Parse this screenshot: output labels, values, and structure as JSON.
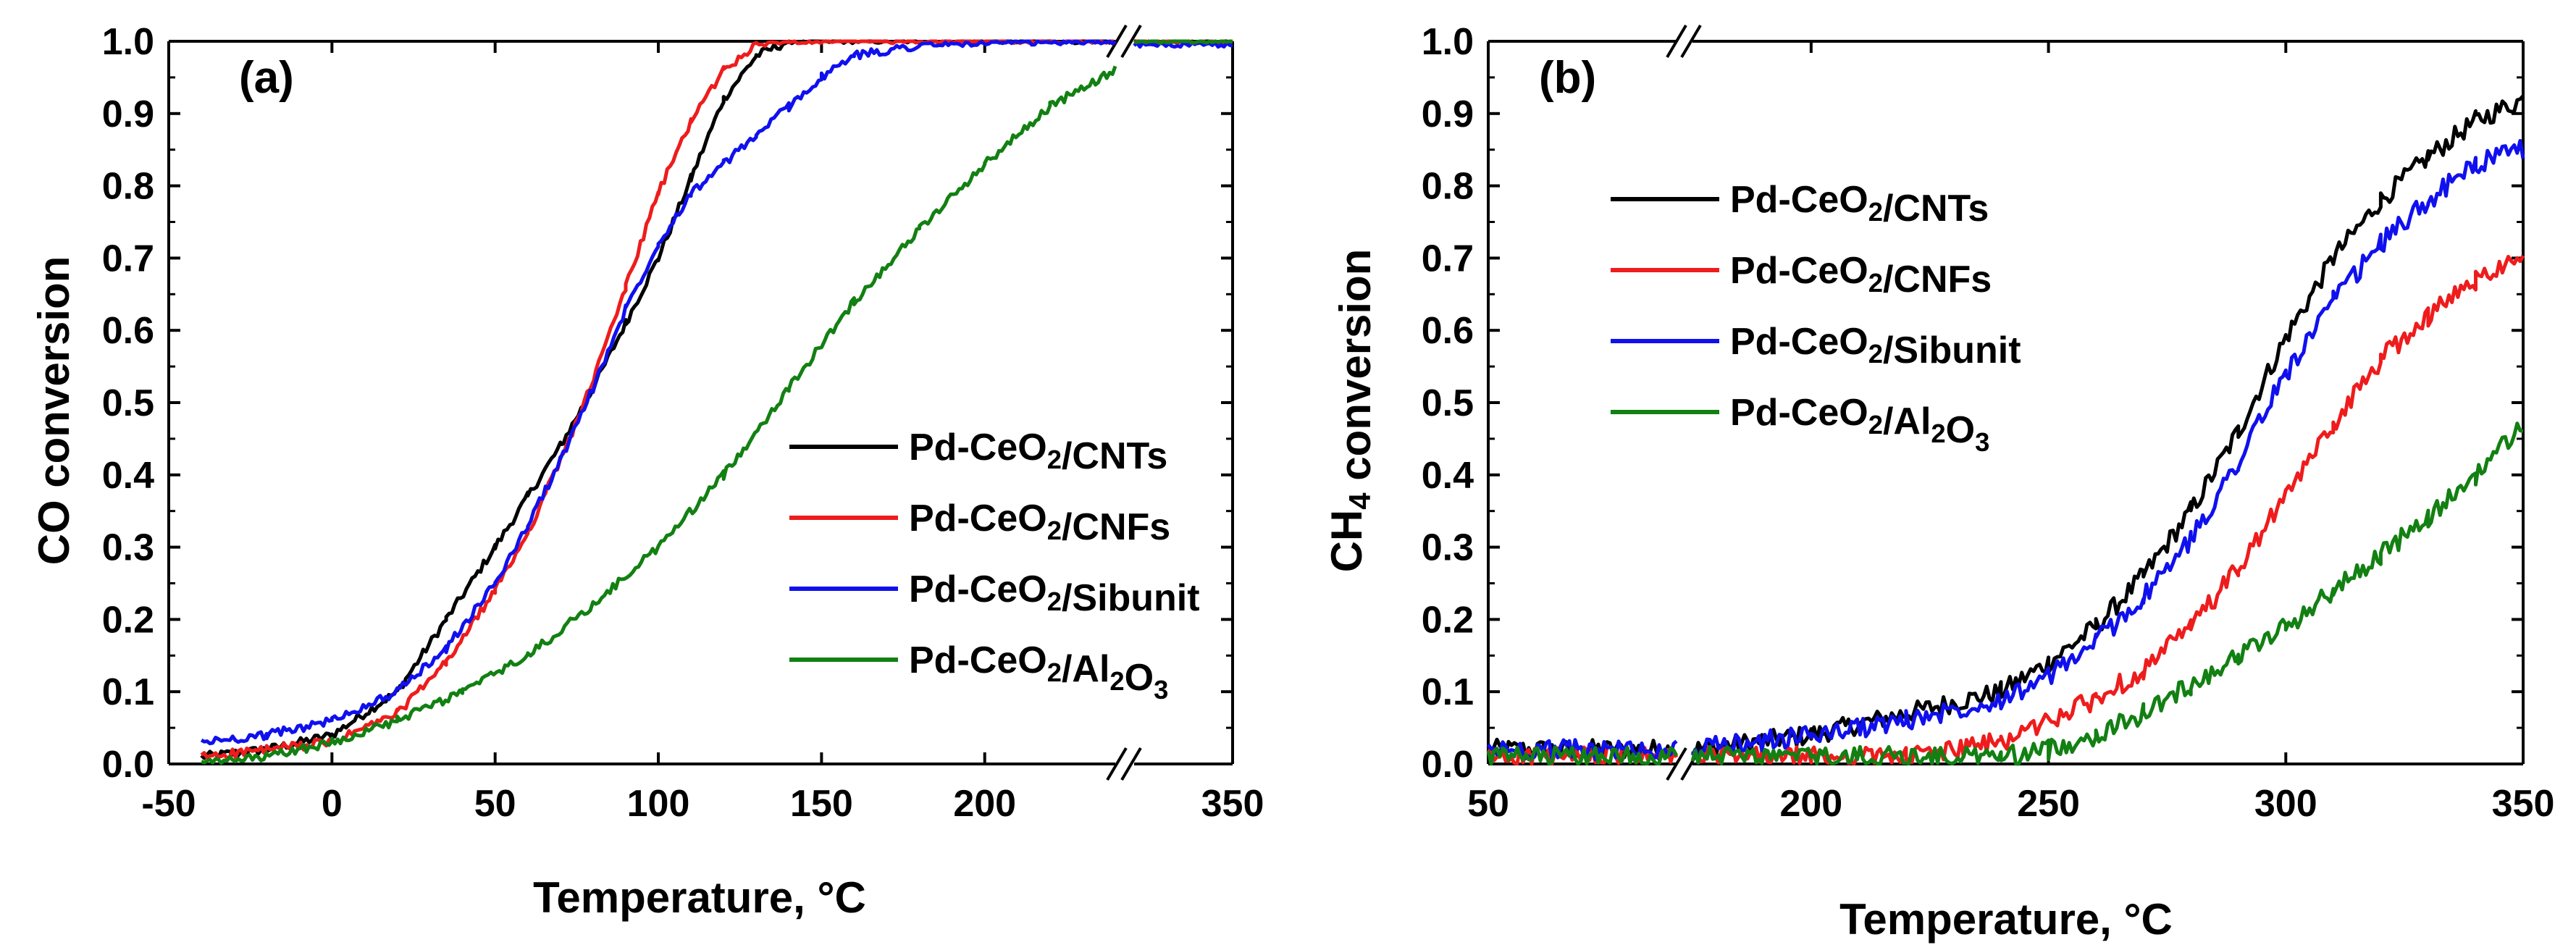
{
  "chart_data": [
    {
      "panel": "(a)",
      "type": "line",
      "xlabel": "Temperature, °C",
      "ylabel": "CO conversion",
      "ylim": [
        0,
        1.0
      ],
      "yticks": [
        "0.0",
        "0.1",
        "0.2",
        "0.3",
        "0.4",
        "0.5",
        "0.6",
        "0.7",
        "0.8",
        "0.9",
        "1.0"
      ],
      "x_segments": [
        {
          "xlim": [
            -50,
            240
          ],
          "ticks": [
            -50,
            0,
            50,
            100,
            150,
            200
          ]
        },
        {
          "xlim": [
            330,
            350
          ],
          "ticks": [
            350
          ]
        }
      ],
      "legend_position": "center-right",
      "series": [
        {
          "name": "Pd-CeO2/CNTs",
          "color": "#000000",
          "points": [
            [
              -40,
              0.01
            ],
            [
              -20,
              0.02
            ],
            [
              0,
              0.04
            ],
            [
              20,
              0.1
            ],
            [
              35,
              0.2
            ],
            [
              50,
              0.3
            ],
            [
              60,
              0.37
            ],
            [
              70,
              0.44
            ],
            [
              80,
              0.52
            ],
            [
              90,
              0.61
            ],
            [
              100,
              0.7
            ],
            [
              110,
              0.81
            ],
            [
              120,
              0.92
            ],
            [
              130,
              0.98
            ],
            [
              140,
              1.0
            ],
            [
              240,
              1.0
            ],
            [
              330,
              1.0
            ],
            [
              350,
              1.0
            ]
          ]
        },
        {
          "name": "Pd-CeO2/CNFs",
          "color": "#ee1c1c",
          "points": [
            [
              -40,
              0.01
            ],
            [
              -20,
              0.02
            ],
            [
              0,
              0.03
            ],
            [
              20,
              0.07
            ],
            [
              35,
              0.14
            ],
            [
              50,
              0.24
            ],
            [
              60,
              0.32
            ],
            [
              70,
              0.42
            ],
            [
              80,
              0.53
            ],
            [
              90,
              0.66
            ],
            [
              100,
              0.79
            ],
            [
              110,
              0.89
            ],
            [
              120,
              0.96
            ],
            [
              130,
              0.995
            ],
            [
              140,
              1.0
            ],
            [
              240,
              1.0
            ],
            [
              330,
              1.0
            ],
            [
              350,
              1.0
            ]
          ]
        },
        {
          "name": "Pd-CeO2/Sibunit",
          "color": "#1010ee",
          "points": [
            [
              -40,
              0.03
            ],
            [
              -20,
              0.04
            ],
            [
              0,
              0.06
            ],
            [
              20,
              0.1
            ],
            [
              35,
              0.16
            ],
            [
              50,
              0.25
            ],
            [
              60,
              0.33
            ],
            [
              70,
              0.42
            ],
            [
              80,
              0.52
            ],
            [
              90,
              0.63
            ],
            [
              100,
              0.72
            ],
            [
              110,
              0.79
            ],
            [
              120,
              0.83
            ],
            [
              130,
              0.87
            ],
            [
              140,
              0.91
            ],
            [
              150,
              0.95
            ],
            [
              160,
              0.98
            ],
            [
              180,
              0.995
            ],
            [
              240,
              1.0
            ],
            [
              330,
              0.995
            ],
            [
              350,
              0.995
            ]
          ]
        },
        {
          "name": "Pd-CeO2/Al2O3",
          "color": "#128012",
          "points": [
            [
              -40,
              0.0
            ],
            [
              -20,
              0.01
            ],
            [
              0,
              0.03
            ],
            [
              20,
              0.06
            ],
            [
              40,
              0.1
            ],
            [
              60,
              0.15
            ],
            [
              80,
              0.22
            ],
            [
              100,
              0.3
            ],
            [
              120,
              0.4
            ],
            [
              140,
              0.52
            ],
            [
              150,
              0.58
            ],
            [
              160,
              0.64
            ],
            [
              180,
              0.74
            ],
            [
              200,
              0.83
            ],
            [
              220,
              0.91
            ],
            [
              240,
              0.96
            ],
            [
              330,
              1.0
            ],
            [
              350,
              1.0
            ]
          ]
        }
      ]
    },
    {
      "panel": "(b)",
      "type": "line",
      "xlabel": "Temperature, °C",
      "ylabel": "CH4 conversion",
      "ylim": [
        0,
        1.0
      ],
      "yticks": [
        "0.0",
        "0.1",
        "0.2",
        "0.3",
        "0.4",
        "0.5",
        "0.6",
        "0.7",
        "0.8",
        "0.9",
        "1.0"
      ],
      "x_segments": [
        {
          "xlim": [
            50,
            105
          ],
          "ticks": [
            50
          ]
        },
        {
          "xlim": [
            175,
            350
          ],
          "ticks": [
            200,
            250,
            300,
            350
          ]
        }
      ],
      "legend_position": "top-left",
      "series": [
        {
          "name": "Pd-CeO2/CNTs",
          "color": "#000000",
          "points": [
            [
              50,
              0.02
            ],
            [
              105,
              0.02
            ],
            [
              175,
              0.02
            ],
            [
              200,
              0.04
            ],
            [
              220,
              0.07
            ],
            [
              240,
              0.1
            ],
            [
              250,
              0.14
            ],
            [
              260,
              0.19
            ],
            [
              270,
              0.26
            ],
            [
              280,
              0.35
            ],
            [
              290,
              0.46
            ],
            [
              300,
              0.59
            ],
            [
              310,
              0.7
            ],
            [
              320,
              0.78
            ],
            [
              330,
              0.84
            ],
            [
              340,
              0.89
            ],
            [
              350,
              0.92
            ]
          ]
        },
        {
          "name": "Pd-CeO2/CNFs",
          "color": "#ee1c1c",
          "points": [
            [
              50,
              0.01
            ],
            [
              105,
              0.01
            ],
            [
              175,
              0.01
            ],
            [
              200,
              0.01
            ],
            [
              220,
              0.01
            ],
            [
              240,
              0.03
            ],
            [
              250,
              0.06
            ],
            [
              260,
              0.09
            ],
            [
              270,
              0.13
            ],
            [
              280,
              0.19
            ],
            [
              290,
              0.27
            ],
            [
              300,
              0.37
            ],
            [
              310,
              0.47
            ],
            [
              320,
              0.56
            ],
            [
              330,
              0.62
            ],
            [
              340,
              0.67
            ],
            [
              350,
              0.71
            ]
          ]
        },
        {
          "name": "Pd-CeO2/Sibunit",
          "color": "#1010ee",
          "points": [
            [
              50,
              0.02
            ],
            [
              105,
              0.02
            ],
            [
              175,
              0.02
            ],
            [
              200,
              0.04
            ],
            [
              220,
              0.06
            ],
            [
              240,
              0.09
            ],
            [
              250,
              0.12
            ],
            [
              260,
              0.17
            ],
            [
              270,
              0.23
            ],
            [
              280,
              0.31
            ],
            [
              290,
              0.42
            ],
            [
              300,
              0.54
            ],
            [
              310,
              0.64
            ],
            [
              320,
              0.72
            ],
            [
              330,
              0.78
            ],
            [
              340,
              0.83
            ],
            [
              350,
              0.85
            ]
          ]
        },
        {
          "name": "Pd-CeO2/Al2O3",
          "color": "#128012",
          "points": [
            [
              50,
              0.01
            ],
            [
              105,
              0.01
            ],
            [
              175,
              0.01
            ],
            [
              200,
              0.01
            ],
            [
              240,
              0.01
            ],
            [
              250,
              0.02
            ],
            [
              260,
              0.04
            ],
            [
              270,
              0.07
            ],
            [
              280,
              0.11
            ],
            [
              290,
              0.15
            ],
            [
              300,
              0.19
            ],
            [
              310,
              0.24
            ],
            [
              320,
              0.29
            ],
            [
              330,
              0.34
            ],
            [
              340,
              0.4
            ],
            [
              350,
              0.47
            ]
          ]
        }
      ]
    }
  ]
}
